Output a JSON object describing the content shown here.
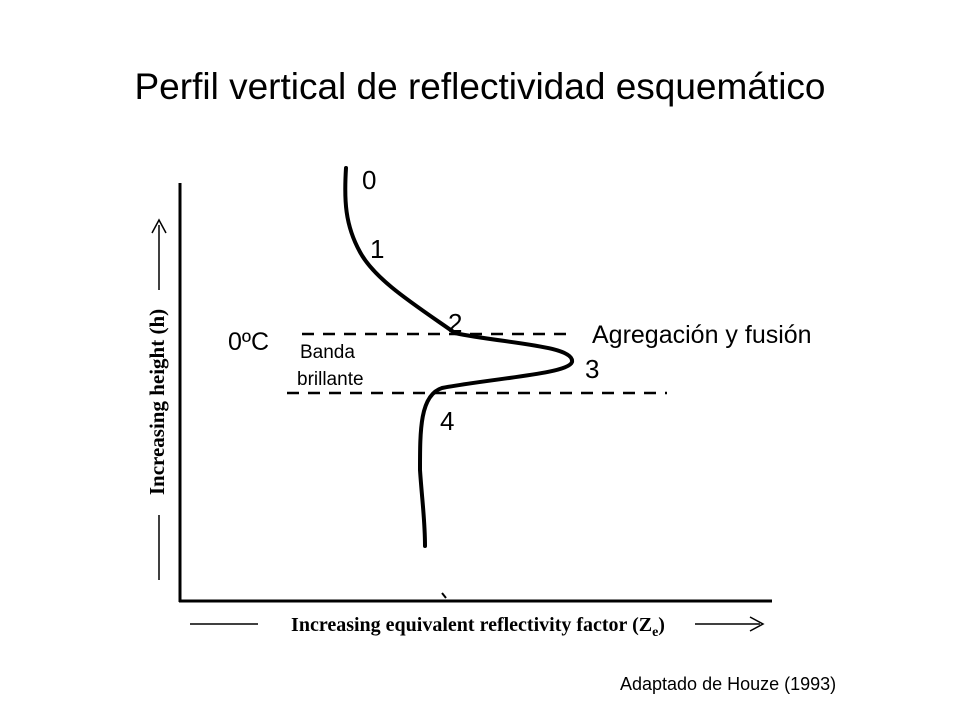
{
  "title": "Perfil vertical de reflectividad esquemático",
  "credit": "Adaptado de Houze (1993)",
  "axes": {
    "xlabel": "Increasing equivalent reflectivity factor (Z",
    "xlabel_subscript": "e",
    "xlabel_close": ")",
    "ylabel": "Increasing height (h)"
  },
  "points": [
    "0",
    "1",
    "2",
    "3",
    "4"
  ],
  "labels": {
    "freezing": "0ºC",
    "band_line1": "Banda",
    "band_line2": "brillante",
    "process": "Agregación y fusión"
  },
  "colors": {
    "ink": "#000000",
    "background": "#ffffff"
  }
}
